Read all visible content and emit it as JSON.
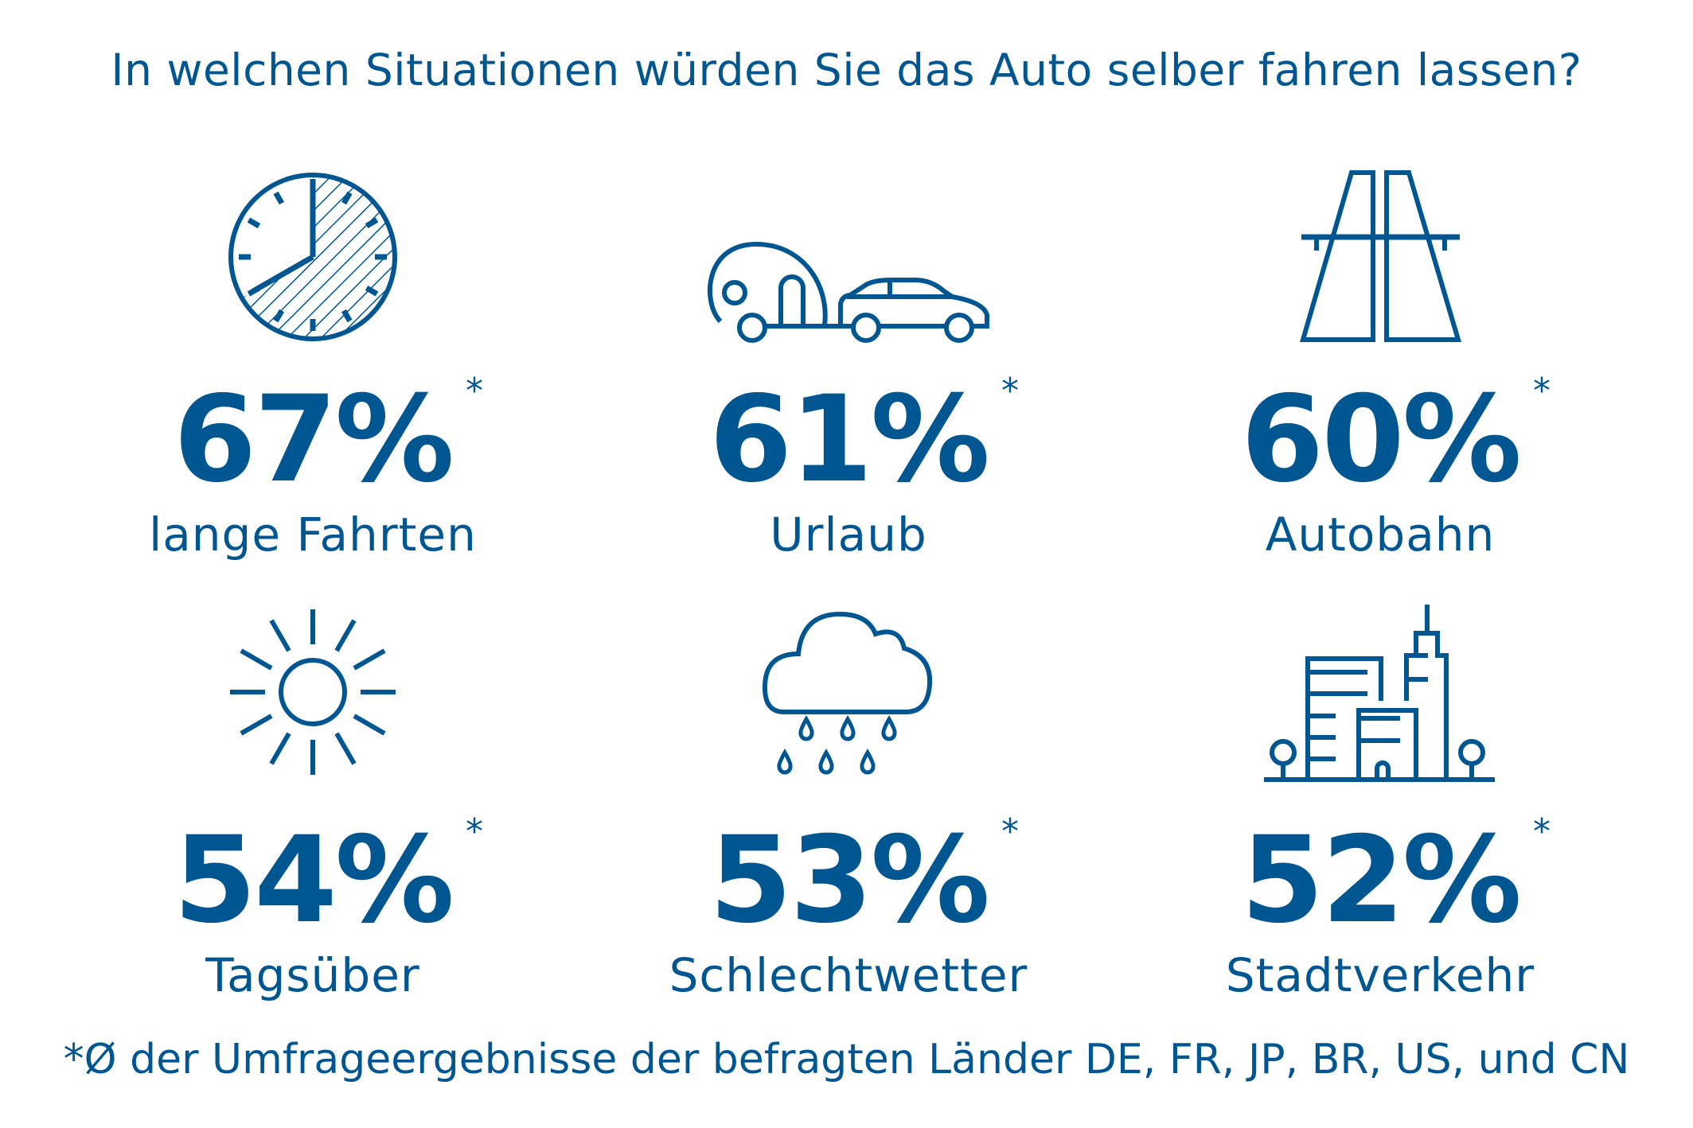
{
  "title": "In welchen Situationen würden Sie das Auto selber fahren lassen?",
  "accent_color": "#005691",
  "stats": [
    {
      "value": "67%",
      "marker": "*",
      "label": "lange Fahrten",
      "icon": "clock-icon"
    },
    {
      "value": "61%",
      "marker": "*",
      "label": "Urlaub",
      "icon": "car-with-caravan-icon"
    },
    {
      "value": "60%",
      "marker": "*",
      "label": "Autobahn",
      "icon": "highway-icon"
    },
    {
      "value": "54%",
      "marker": "*",
      "label": "Tagsüber",
      "icon": "sun-icon"
    },
    {
      "value": "53%",
      "marker": "*",
      "label": "Schlechtwetter",
      "icon": "rain-cloud-icon"
    },
    {
      "value": "52%",
      "marker": "*",
      "label": "Stadtverkehr",
      "icon": "city-icon"
    }
  ],
  "footnote": "*Ø der Umfrageergebnisse der befragten Länder DE, FR, JP, BR, US, und CN"
}
